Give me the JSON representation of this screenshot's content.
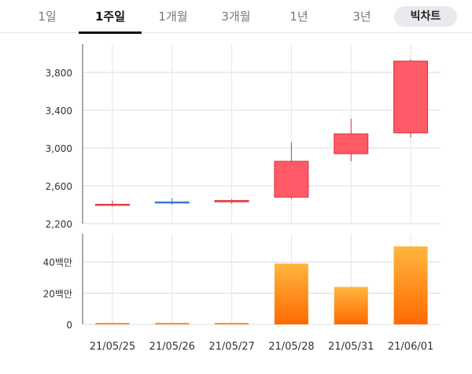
{
  "tabs": [
    {
      "label": "1일",
      "active": false
    },
    {
      "label": "1주일",
      "active": true
    },
    {
      "label": "1개월",
      "active": false
    },
    {
      "label": "3개월",
      "active": false
    },
    {
      "label": "1년",
      "active": false
    },
    {
      "label": "3년",
      "active": false
    }
  ],
  "big_chart_button": "빅차트",
  "colors": {
    "up": "#ff5a66",
    "up_border": "#d8343f",
    "down": "#3a7bd5",
    "volume_top": "#ffb640",
    "volume_bottom": "#ff6a00",
    "grid": "#dcdcdc"
  },
  "chart_data": [
    {
      "type": "candlestick",
      "categories": [
        "21/05/25",
        "21/05/26",
        "21/05/27",
        "21/05/28",
        "21/05/31",
        "21/06/01"
      ],
      "ohlc": [
        {
          "open": 2395,
          "high": 2445,
          "low": 2380,
          "close": 2405
        },
        {
          "open": 2430,
          "high": 2470,
          "low": 2400,
          "close": 2430
        },
        {
          "open": 2430,
          "high": 2460,
          "low": 2410,
          "close": 2445
        },
        {
          "open": 2480,
          "high": 3060,
          "low": 2460,
          "close": 2860
        },
        {
          "open": 2940,
          "high": 3310,
          "low": 2860,
          "close": 3150
        },
        {
          "open": 3160,
          "high": 3940,
          "low": 3110,
          "close": 3920
        }
      ],
      "yticks": [
        "2,200",
        "2,600",
        "3,000",
        "3,400",
        "3,800"
      ],
      "ylim": [
        2200,
        4100
      ],
      "grid": true
    },
    {
      "type": "bar",
      "categories": [
        "21/05/25",
        "21/05/26",
        "21/05/27",
        "21/05/28",
        "21/05/31",
        "21/06/01"
      ],
      "values": [
        1,
        1,
        1,
        39,
        24,
        50
      ],
      "unit": "백만",
      "yticks": [
        "0",
        "20백만",
        "40백만"
      ],
      "ylim": [
        0,
        58
      ],
      "grid": true
    }
  ]
}
